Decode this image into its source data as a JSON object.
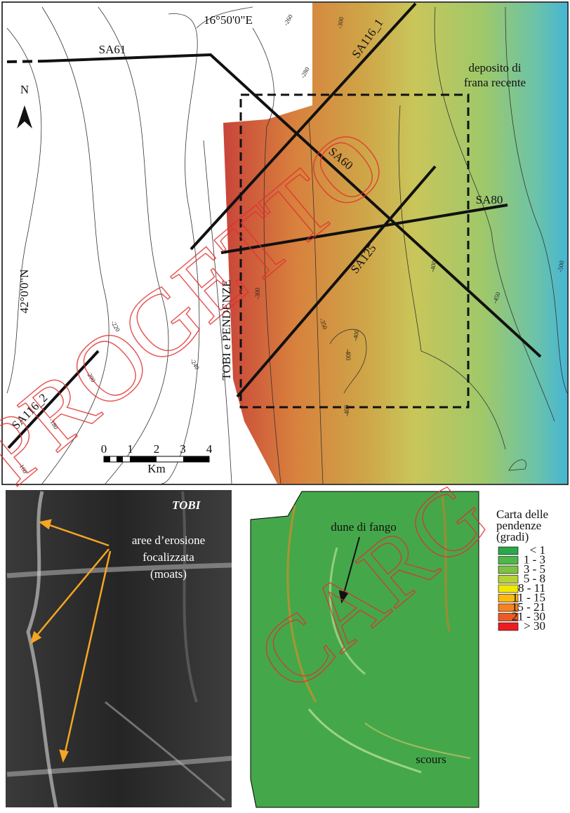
{
  "map": {
    "longitude_label": "16°50'0\"E",
    "latitude_label": "42°0'0\"N",
    "north": "N",
    "box_label": "TOBI e PENDENZE",
    "landslide_label": [
      "deposito di",
      "frana recente"
    ],
    "profiles": [
      "SA61",
      "SA116_1",
      "SA60",
      "SA80",
      "SA125",
      "SA116_2"
    ],
    "contour_labels": [
      "-260",
      "-300",
      "-280",
      "-220",
      "-240",
      "-200",
      "-180",
      "-160",
      "-300",
      "-350",
      "-400",
      "-400",
      "-400",
      "-400",
      "-450",
      "-500"
    ],
    "scale": {
      "ticks": [
        "0",
        "1",
        "2",
        "3",
        "4"
      ],
      "unit": "Km"
    }
  },
  "tobi_panel": {
    "title": "TOBI",
    "annotation": [
      "aree d’erosione",
      "focalizzata",
      "(moats)"
    ]
  },
  "slope_panel": {
    "annotations": [
      "dune di fango",
      "scours"
    ],
    "legend_title": [
      "Carta delle",
      "pendenze",
      "(gradi)"
    ],
    "legend": [
      {
        "label": "< 1",
        "color": "#2aa84a"
      },
      {
        "label": "1 - 3",
        "color": "#4cb848"
      },
      {
        "label": "3 - 5",
        "color": "#7cc242"
      },
      {
        "label": "5 - 8",
        "color": "#b5d334"
      },
      {
        "label": "8 - 11",
        "color": "#f2e700"
      },
      {
        "label": "11 - 15",
        "color": "#fcb813"
      },
      {
        "label": "15 - 21",
        "color": "#f58220"
      },
      {
        "label": "21 - 30",
        "color": "#ee5a24"
      },
      {
        "label": "> 30",
        "color": "#ed1c24"
      }
    ]
  },
  "watermark": [
    "PROGETTO",
    "CARG"
  ]
}
